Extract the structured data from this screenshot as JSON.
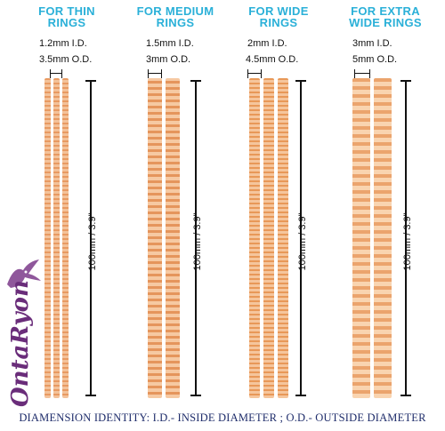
{
  "columns": [
    {
      "title_line1": "FOR THIN",
      "title_line2": "RINGS",
      "id": "1.2mm I.D.",
      "od": "3.5mm O.D.",
      "length": "100mm / 3.9\""
    },
    {
      "title_line1": "FOR MEDIUM",
      "title_line2": "RINGS",
      "id": "1.5mm I.D.",
      "od": "3mm O.D.",
      "length": "100mm / 3.9\""
    },
    {
      "title_line1": "FOR WIDE",
      "title_line2": "RINGS",
      "id": "2mm I.D.",
      "od": "4.5mm O.D.",
      "length": "100mm / 3.9\""
    },
    {
      "title_line1": "FOR EXTRA",
      "title_line2": "WIDE RINGS",
      "id": "3mm I.D.",
      "od": "5mm O.D.",
      "length": "100mm / 3.9\""
    }
  ],
  "logo": {
    "text": "OntaRyon"
  },
  "footer": {
    "text": "DIAMENSION IDENTITY: I.D.- INSIDE DIAMETER ; O.D.- OUTSIDE DIAMETER"
  },
  "colors": {
    "title": "#2ab0d8",
    "strand": "#f0b07a",
    "footer": "#1f2d6b",
    "logo": "#6a2d7a"
  }
}
